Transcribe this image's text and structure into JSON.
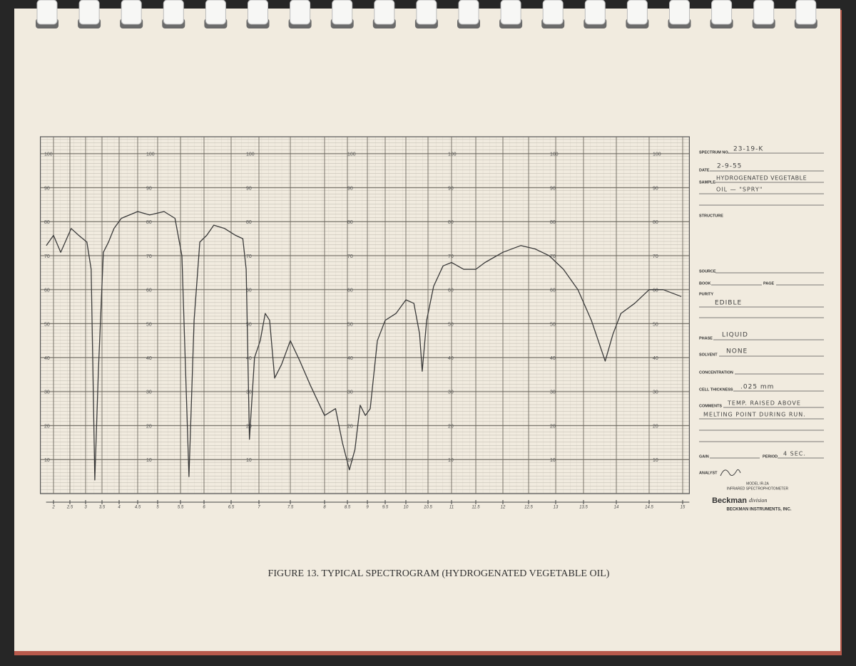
{
  "chart_data": {
    "type": "line",
    "title": "FIGURE 13.  TYPICAL SPECTROGRAM (HYDROGENATED VEGETABLE OIL)",
    "x": [
      1.78,
      2.0,
      2.22,
      2.54,
      2.78,
      3.04,
      3.17,
      3.28,
      3.39,
      3.54,
      3.69,
      3.85,
      4.06,
      4.5,
      4.8,
      5.14,
      5.38,
      5.53,
      5.68,
      5.79,
      5.91,
      6.05,
      6.18,
      6.38,
      6.58,
      6.71,
      6.77,
      6.83,
      6.92,
      7.02,
      7.1,
      7.17,
      7.25,
      7.36,
      7.5,
      7.64,
      7.79,
      8.0,
      8.24,
      8.39,
      8.55,
      8.69,
      8.82,
      8.95,
      9.08,
      9.28,
      9.5,
      9.76,
      10.0,
      10.18,
      10.31,
      10.37,
      10.47,
      10.62,
      10.82,
      11.0,
      11.25,
      11.5,
      11.67,
      12.0,
      12.35,
      12.62,
      12.88,
      13.14,
      13.4,
      13.62,
      13.83,
      13.95,
      14.07,
      14.28,
      14.5,
      14.71,
      14.98
    ],
    "values": [
      73,
      76,
      71,
      78,
      76,
      74,
      66,
      4,
      36,
      71,
      74,
      78,
      81,
      83,
      82,
      83,
      81,
      70,
      5,
      51,
      74,
      76,
      79,
      78,
      76,
      75,
      66,
      16,
      40,
      45,
      53,
      51,
      34,
      38,
      45,
      39,
      32,
      23,
      25,
      15,
      7,
      13,
      26,
      23,
      25,
      45,
      51,
      53,
      57,
      56,
      47,
      36,
      51,
      61,
      67,
      68,
      66,
      66,
      68,
      71,
      73,
      72,
      70,
      66,
      60,
      51,
      39,
      47,
      53,
      56,
      60,
      60,
      58
    ],
    "color": "#3a3a3a",
    "xlim": [
      1.6,
      15.1
    ],
    "xticks": [
      2,
      2.5,
      3,
      3.5,
      4,
      4.5,
      5,
      5.5,
      6,
      6.5,
      7,
      7.5,
      8,
      8.5,
      9,
      9.5,
      10,
      10.5,
      11,
      11.5,
      12,
      12.5,
      13,
      13.5,
      14,
      14.5,
      15
    ],
    "ylim": [
      0,
      105
    ],
    "yticks": [
      10,
      20,
      30,
      40,
      50,
      60,
      70,
      80,
      90,
      100
    ],
    "grid": true
  },
  "form": {
    "spectrum_no_label": "SPECTRUM NO.",
    "spectrum_no": "23-19-K",
    "date_label": "DATE",
    "date": "2-9-55",
    "sample_label": "SAMPLE",
    "sample": [
      "HYDROGENATED VEGETABLE",
      "OIL — \"SPRY\""
    ],
    "structure_label": "STRUCTURE",
    "source_label": "SOURCE",
    "book_label": "BOOK",
    "page_label": "PAGE",
    "purity_label": "PURITY",
    "purity": "EDIBLE",
    "phase_label": "PHASE",
    "phase": "LIQUID",
    "solvent_label": "SOLVENT",
    "solvent": "NONE",
    "concentration_label": "CONCENTRATION",
    "cell_thickness_label": "CELL THICKNESS",
    "cell_thickness": ".025 mm",
    "comments_label": "COMMENTS",
    "comments": [
      "TEMP. RAISED ABOVE",
      "MELTING POINT DURING RUN."
    ],
    "gain_label": "GAIN",
    "period_label": "PERIOD",
    "period": "4 SEC.",
    "analyst_label": "ANALYST",
    "model": "MODEL IR-2A",
    "instrument": "INFRARED SPECTROPHOTOMETER",
    "brand": "Beckman",
    "division": "division",
    "company": "BECKMAN INSTRUMENTS, INC."
  }
}
